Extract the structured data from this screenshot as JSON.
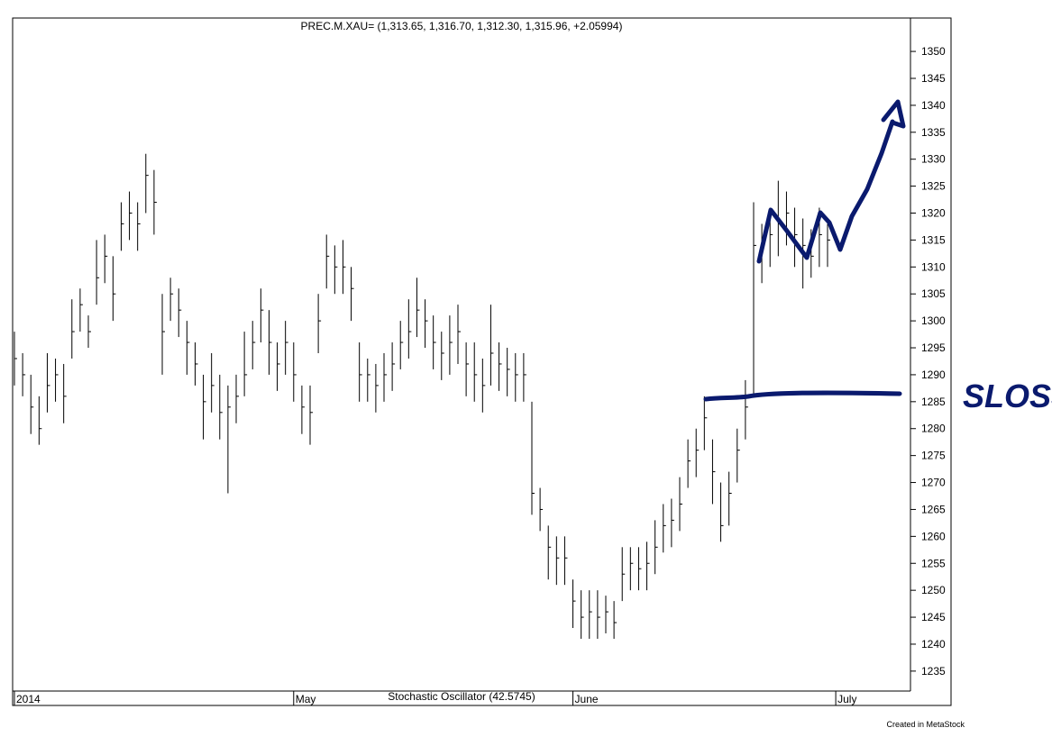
{
  "chart_data": {
    "type": "ohlc",
    "title": "PREC.M.XAU= (1,313.65, 1,316.70, 1,312.30, 1,315.96, +2.05994)",
    "subtitle": "Stochastic Oscillator (42.5745)",
    "footer": "Created in MetaStock",
    "annotation": "SLOSS",
    "color": "#000000",
    "high": [
      1298,
      1294,
      1290,
      1286,
      1294,
      1293,
      1292,
      1304,
      1306,
      1301,
      1315,
      1316,
      1312,
      1322,
      1324,
      1322,
      1331,
      1328,
      1305,
      1308,
      1306,
      1300,
      1296,
      1290,
      1294,
      1290,
      1288,
      1290,
      1298,
      1300,
      1306,
      1302,
      1296,
      1300,
      1296,
      1288,
      1288,
      1305,
      1316,
      1314,
      1315,
      1310,
      1296,
      1293,
      1292,
      1294,
      1296,
      1300,
      1304,
      1308,
      1304,
      1301,
      1298,
      1301,
      1303,
      1296,
      1296,
      1293,
      1303,
      1296,
      1295,
      1294,
      1294,
      1285,
      1269,
      1262,
      1260,
      1260,
      1252,
      1250,
      1250,
      1250,
      1249,
      1248,
      1258,
      1258,
      1258,
      1259,
      1263,
      1266,
      1267,
      1271,
      1278,
      1280,
      1286,
      1278,
      1270,
      1272,
      1280,
      1289,
      1322,
      1318,
      1321,
      1326,
      1324,
      1321,
      1319,
      1317,
      1321,
      1318
    ],
    "low": [
      1288,
      1286,
      1279,
      1277,
      1283,
      1285,
      1281,
      1293,
      1298,
      1295,
      1303,
      1307,
      1300,
      1313,
      1315,
      1313,
      1320,
      1316,
      1290,
      1300,
      1297,
      1290,
      1288,
      1278,
      1283,
      1278,
      1268,
      1281,
      1286,
      1291,
      1296,
      1290,
      1287,
      1290,
      1285,
      1279,
      1277,
      1294,
      1306,
      1305,
      1305,
      1300,
      1285,
      1285,
      1283,
      1285,
      1287,
      1291,
      1293,
      1297,
      1295,
      1291,
      1289,
      1290,
      1292,
      1286,
      1285,
      1283,
      1288,
      1287,
      1286,
      1285,
      1285,
      1264,
      1261,
      1252,
      1251,
      1251,
      1243,
      1241,
      1241,
      1241,
      1242,
      1241,
      1248,
      1250,
      1250,
      1250,
      1253,
      1257,
      1258,
      1261,
      1269,
      1271,
      1276,
      1266,
      1259,
      1262,
      1270,
      1278,
      1286,
      1307,
      1310,
      1312,
      1314,
      1310,
      1306,
      1308,
      1310,
      1310
    ],
    "close": [
      1293,
      1290,
      1284,
      1280,
      1288,
      1290,
      1286,
      1298,
      1303,
      1298,
      1308,
      1312,
      1305,
      1318,
      1320,
      1318,
      1327,
      1322,
      1298,
      1305,
      1302,
      1296,
      1292,
      1285,
      1288,
      1283,
      1284,
      1286,
      1290,
      1296,
      1302,
      1296,
      1292,
      1296,
      1290,
      1284,
      1283,
      1300,
      1312,
      1310,
      1310,
      1306,
      1290,
      1290,
      1288,
      1290,
      1292,
      1296,
      1298,
      1302,
      1300,
      1296,
      1294,
      1296,
      1298,
      1292,
      1290,
      1288,
      1294,
      1292,
      1291,
      1290,
      1290,
      1268,
      1265,
      1258,
      1256,
      1256,
      1248,
      1245,
      1246,
      1245,
      1246,
      1244,
      1253,
      1255,
      1254,
      1255,
      1258,
      1262,
      1263,
      1266,
      1274,
      1276,
      1282,
      1272,
      1262,
      1268,
      1276,
      1284,
      1314,
      1314,
      1316,
      1318,
      1320,
      1316,
      1314,
      1312,
      1316,
      1315
    ],
    "xlim": [
      0,
      108
    ],
    "xticks": [
      {
        "value": 0,
        "label": "2014"
      },
      {
        "value": 34,
        "label": "May"
      },
      {
        "value": 68,
        "label": "June"
      },
      {
        "value": 100,
        "label": "July"
      }
    ],
    "ylim": [
      1231.3,
      1356.2
    ],
    "yticks": [
      1235,
      1240,
      1245,
      1250,
      1255,
      1260,
      1265,
      1270,
      1275,
      1280,
      1285,
      1290,
      1295,
      1300,
      1305,
      1310,
      1315,
      1320,
      1325,
      1330,
      1335,
      1340,
      1345,
      1350
    ]
  }
}
